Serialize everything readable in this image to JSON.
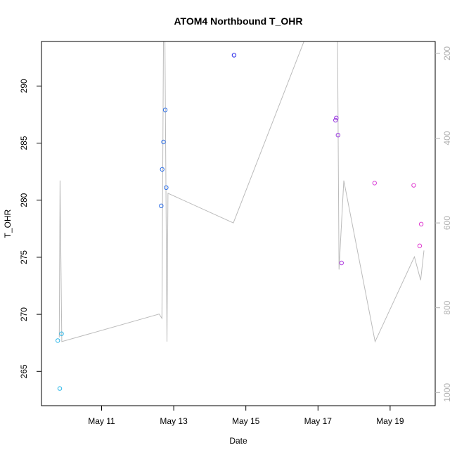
{
  "chart_data": {
    "type": "scatter",
    "title": "ATOM4 Northbound T_OHR",
    "xlabel": "Date",
    "ylabel": "T_OHR",
    "x_ticks": [
      "May 11",
      "May 13",
      "May 15",
      "May 17",
      "May 19"
    ],
    "y_ticks": [
      265,
      270,
      275,
      280,
      285,
      290
    ],
    "y2_ticks": [
      200,
      400,
      600,
      800,
      1000
    ],
    "xlim": [
      "2011-05-09T08:00",
      "2011-05-20T06:00"
    ],
    "ylim": [
      262,
      293.9
    ],
    "y2lim": [
      1031,
      172
    ],
    "grid": false,
    "points": [
      {
        "x": "2011-05-09T18:50",
        "y": 267.7,
        "color": "#29b6e8"
      },
      {
        "x": "2011-05-09T21:20",
        "y": 268.3,
        "color": "#29b6e8"
      },
      {
        "x": "2011-05-09T20:10",
        "y": 263.5,
        "color": "#29b6e8"
      },
      {
        "x": "2011-05-12T15:40",
        "y": 279.5,
        "color": "#2f6fe6"
      },
      {
        "x": "2011-05-12T16:20",
        "y": 282.7,
        "color": "#2f6fe6"
      },
      {
        "x": "2011-05-12T17:10",
        "y": 285.1,
        "color": "#2f6fe6"
      },
      {
        "x": "2011-05-12T18:20",
        "y": 287.9,
        "color": "#2f6fe6"
      },
      {
        "x": "2011-05-12T19:00",
        "y": 281.1,
        "color": "#2f6fe6"
      },
      {
        "x": "2011-05-14T16:10",
        "y": 292.7,
        "color": "#2a2ae8"
      },
      {
        "x": "2011-05-17T11:40",
        "y": 287.0,
        "color": "#9a3ae0"
      },
      {
        "x": "2011-05-17T12:10",
        "y": 287.2,
        "color": "#9a3ae0"
      },
      {
        "x": "2011-05-17T13:20",
        "y": 285.7,
        "color": "#9a3ae0"
      },
      {
        "x": "2011-05-17T15:40",
        "y": 274.5,
        "color": "#b03ee0"
      },
      {
        "x": "2011-05-18T13:40",
        "y": 281.5,
        "color": "#d83ed8"
      },
      {
        "x": "2011-05-19T15:40",
        "y": 281.3,
        "color": "#e03ed0"
      },
      {
        "x": "2011-05-19T19:40",
        "y": 276.0,
        "color": "#e03ed0"
      },
      {
        "x": "2011-05-19T20:40",
        "y": 277.9,
        "color": "#e03ed0"
      }
    ],
    "secondary_line": {
      "axis": "right",
      "color": "#bbbbbb",
      "points": [
        {
          "x": "2011-05-09T19:50",
          "y2": 870
        },
        {
          "x": "2011-05-09T20:20",
          "y2": 500
        },
        {
          "x": "2011-05-09T21:30",
          "y2": 880
        },
        {
          "x": "2011-05-12T14:20",
          "y2": 815
        },
        {
          "x": "2011-05-12T16:10",
          "y2": 825
        },
        {
          "x": "2011-05-12T17:10",
          "y2": 172
        },
        {
          "x": "2011-05-12T18:10",
          "y2": 172
        },
        {
          "x": "2011-05-12T19:30",
          "y2": 880
        },
        {
          "x": "2011-05-12T20:10",
          "y2": 530
        },
        {
          "x": "2011-05-14T15:40",
          "y2": 600
        },
        {
          "x": "2011-05-16T14:40",
          "y2": 172
        },
        {
          "x": "2011-05-17T13:00",
          "y2": 172
        },
        {
          "x": "2011-05-17T14:00",
          "y2": 710
        },
        {
          "x": "2011-05-17T17:10",
          "y2": 500
        },
        {
          "x": "2011-05-18T14:00",
          "y2": 880
        },
        {
          "x": "2011-05-19T16:10",
          "y2": 680
        },
        {
          "x": "2011-05-19T20:20",
          "y2": 735
        },
        {
          "x": "2011-05-19T22:30",
          "y2": 665
        }
      ]
    }
  }
}
